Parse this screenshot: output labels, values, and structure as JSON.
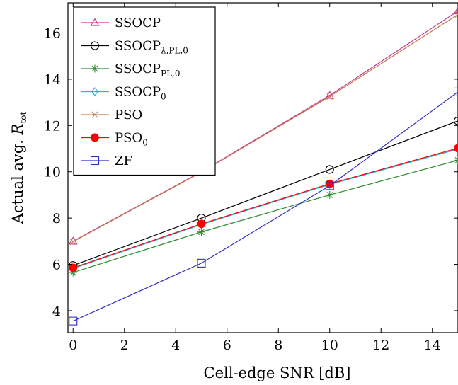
{
  "chart_data": {
    "type": "line",
    "title": "",
    "xlabel": "Cell-edge SNR [dB]",
    "ylabel": {
      "main": "Actual avg. ",
      "symbol": "R",
      "subscript": "tot"
    },
    "xlim": [
      -0.2,
      15
    ],
    "ylim": [
      3.05,
      17.3
    ],
    "xticks": [
      0,
      2,
      4,
      6,
      8,
      10,
      12,
      14
    ],
    "yticks": [
      4,
      6,
      8,
      10,
      12,
      14,
      16
    ],
    "grid": false,
    "legend_position": "top-left",
    "x": [
      0,
      5,
      10,
      15
    ],
    "series": [
      {
        "name": "SSOCP",
        "name_sub": "",
        "marker": "triangle",
        "color": "#cc3399",
        "values": [
          7.0,
          10.0,
          13.3,
          16.95
        ]
      },
      {
        "name": "SSOCP",
        "name_sub": "λ,PL,0",
        "marker": "circle-open",
        "color": "#000000",
        "values": [
          5.95,
          8.0,
          10.1,
          12.2
        ]
      },
      {
        "name": "SSOCP",
        "name_sub": "PL,0",
        "marker": "asterisk",
        "color": "#2e8b2e",
        "values": [
          5.65,
          7.4,
          9.0,
          10.5
        ]
      },
      {
        "name": "SSOCP",
        "name_sub": "0",
        "marker": "diamond",
        "color": "#22b5d8",
        "values": [
          5.82,
          7.72,
          9.45,
          10.98
        ]
      },
      {
        "name": "PSO",
        "name_sub": "",
        "marker": "cross",
        "color": "#c08050",
        "values": [
          6.98,
          9.98,
          13.25,
          16.8
        ]
      },
      {
        "name": "PSO",
        "name_sub": "0",
        "marker": "dot-filled",
        "color": "#ff0000",
        "values": [
          5.85,
          7.75,
          9.48,
          11.02
        ]
      },
      {
        "name": "ZF",
        "name_sub": "",
        "marker": "square-open",
        "color": "#2f2fcc",
        "values": [
          3.55,
          6.05,
          9.4,
          13.45
        ]
      }
    ]
  }
}
